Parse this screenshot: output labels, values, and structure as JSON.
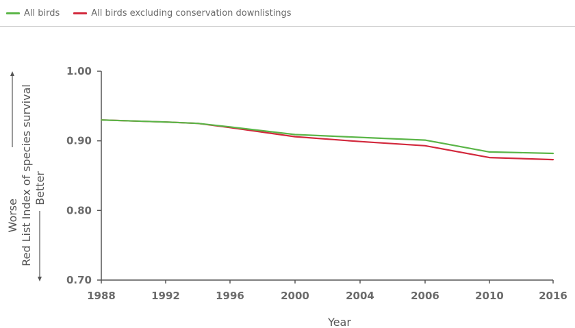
{
  "legend": {
    "items": [
      {
        "label": "All birds",
        "color": "#5ab547"
      },
      {
        "label": "All birds excluding conservation  downlistings",
        "color": "#d2283c"
      }
    ]
  },
  "chart_data": {
    "type": "line",
    "xlabel": "Year",
    "ylabel_main": "Red List Index of species survival",
    "ylabel_worse": "Worse",
    "ylabel_better": "Better",
    "ylim": [
      0.7,
      1.0
    ],
    "yticks": [
      "1.00",
      "0.90",
      "0.80",
      "0.70"
    ],
    "ytick_values": [
      1.0,
      0.9,
      0.8,
      0.7
    ],
    "xticks": [
      "1988",
      "1992",
      "1996",
      "2000",
      "2004",
      "2006",
      "2010",
      "2016"
    ],
    "grid": false,
    "legend_position": "top-left",
    "series": [
      {
        "name": "All birds",
        "color": "#5ab547",
        "points": [
          {
            "x": "1988",
            "y": 0.93
          },
          {
            "x": "1992",
            "y": 0.927
          },
          {
            "x": "1994",
            "y": 0.925
          },
          {
            "x": "1996",
            "y": 0.92
          },
          {
            "x": "2000",
            "y": 0.909
          },
          {
            "x": "2004",
            "y": 0.905
          },
          {
            "x": "2006",
            "y": 0.901
          },
          {
            "x": "2010",
            "y": 0.884
          },
          {
            "x": "2016",
            "y": 0.882
          }
        ]
      },
      {
        "name": "All birds excluding conservation  downlistings",
        "color": "#d2283c",
        "points": [
          {
            "x": "1988",
            "y": 0.93
          },
          {
            "x": "1992",
            "y": 0.927
          },
          {
            "x": "1994",
            "y": 0.925
          },
          {
            "x": "1996",
            "y": 0.919
          },
          {
            "x": "2000",
            "y": 0.906
          },
          {
            "x": "2004",
            "y": 0.899
          },
          {
            "x": "2006",
            "y": 0.893
          },
          {
            "x": "2010",
            "y": 0.876
          },
          {
            "x": "2016",
            "y": 0.873
          }
        ]
      }
    ]
  }
}
